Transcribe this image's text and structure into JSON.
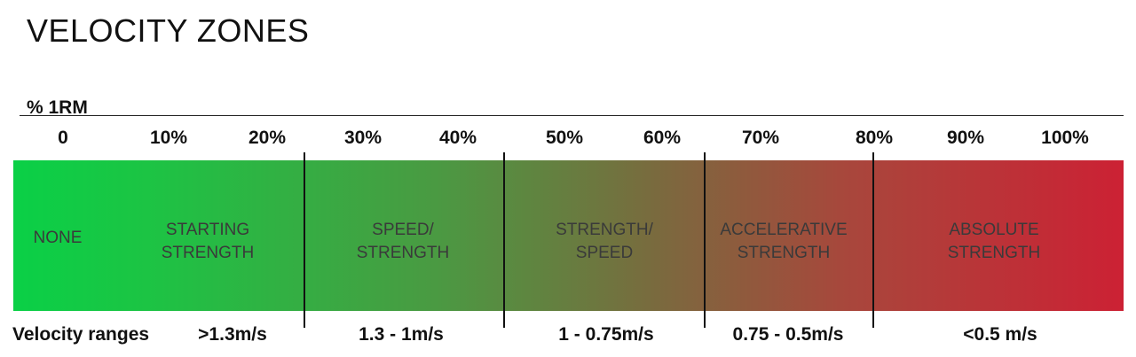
{
  "title": "VELOCITY ZONES",
  "axis_label": "% 1RM",
  "ticks": [
    "0",
    "10%",
    "20%",
    "30%",
    "40%",
    "50%",
    "60%",
    "70%",
    "80%",
    "90%",
    "100%"
  ],
  "gradient": {
    "start": "#0ad046",
    "end": "#cc2134"
  },
  "zones": [
    {
      "label": "NONE"
    },
    {
      "label": "STARTING\nSTRENGTH"
    },
    {
      "label": "SPEED/\nSTRENGTH"
    },
    {
      "label": "STRENGTH/\nSPEED"
    },
    {
      "label": "ACCELERATIVE\nSTRENGTH"
    },
    {
      "label": "ABSOLUTE\nSTRENGTH"
    }
  ],
  "velocity": {
    "title": "Velocity ranges",
    "ranges": [
      ">1.3m/s",
      "1.3 - 1m/s",
      "1 - 0.75m/s",
      "0.75 - 0.5m/s",
      "<0.5 m/s"
    ]
  }
}
